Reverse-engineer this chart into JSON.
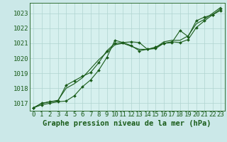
{
  "title": "Graphe pression niveau de la mer (hPa)",
  "background_color": "#cbe8e8",
  "plot_bg_color": "#d6f0ee",
  "grid_color": "#b0d4d0",
  "line_color": "#1a5c1a",
  "marker_color": "#1a5c1a",
  "xlim": [
    -0.5,
    23.5
  ],
  "ylim": [
    1016.5,
    1023.7
  ],
  "yticks": [
    1017,
    1018,
    1019,
    1020,
    1021,
    1022,
    1023
  ],
  "xticks": [
    0,
    1,
    2,
    3,
    4,
    5,
    6,
    7,
    8,
    9,
    10,
    11,
    12,
    13,
    14,
    15,
    16,
    17,
    18,
    19,
    20,
    21,
    22,
    23
  ],
  "series1": [
    1016.7,
    1016.9,
    1017.0,
    1017.1,
    1017.15,
    1017.5,
    1018.1,
    1018.55,
    1019.2,
    1020.05,
    1021.2,
    1021.05,
    1021.1,
    1021.05,
    1020.6,
    1020.65,
    1021.0,
    1021.05,
    1021.85,
    1021.45,
    1022.5,
    1022.75,
    1022.9,
    1023.2
  ],
  "series2": [
    1016.7,
    1017.0,
    1017.1,
    1017.15,
    1018.2,
    1018.5,
    1018.8,
    1019.05,
    1019.7,
    1020.5,
    1021.0,
    1021.05,
    1020.85,
    1020.5,
    1020.6,
    1020.75,
    1021.0,
    1021.1,
    1021.05,
    1021.25,
    1022.05,
    1022.5,
    1022.9,
    1023.3
  ],
  "series3": [
    1016.7,
    1017.0,
    1017.1,
    1017.2,
    1018.0,
    1018.3,
    1018.7,
    1019.3,
    1019.9,
    1020.4,
    1020.9,
    1021.0,
    1020.8,
    1020.6,
    1020.6,
    1020.7,
    1021.1,
    1021.2,
    1021.2,
    1021.5,
    1022.3,
    1022.6,
    1023.0,
    1023.4
  ],
  "title_fontsize": 7.5,
  "tick_fontsize": 6.5
}
